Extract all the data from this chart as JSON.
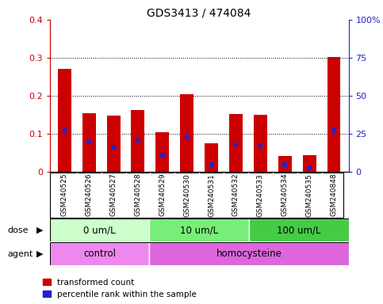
{
  "title": "GDS3413 / 474084",
  "samples": [
    "GSM240525",
    "GSM240526",
    "GSM240527",
    "GSM240528",
    "GSM240529",
    "GSM240530",
    "GSM240531",
    "GSM240532",
    "GSM240533",
    "GSM240534",
    "GSM240535",
    "GSM240848"
  ],
  "transformed_count": [
    0.27,
    0.155,
    0.148,
    0.163,
    0.105,
    0.205,
    0.075,
    0.152,
    0.15,
    0.042,
    0.043,
    0.302
  ],
  "percentile_rank_left": [
    0.108,
    0.078,
    0.065,
    0.082,
    0.043,
    0.092,
    0.018,
    0.072,
    0.068,
    0.018,
    0.01,
    0.108
  ],
  "percentile_height": [
    0.012,
    0.012,
    0.012,
    0.012,
    0.012,
    0.012,
    0.012,
    0.012,
    0.012,
    0.012,
    0.012,
    0.012
  ],
  "red_color": "#cc0000",
  "blue_color": "#2222cc",
  "bar_width": 0.55,
  "blue_bar_width": 0.18,
  "ylim_left": [
    0,
    0.4
  ],
  "yticks_left": [
    0,
    0.1,
    0.2,
    0.3,
    0.4
  ],
  "ytick_labels_left": [
    "0",
    "0.1",
    "0.2",
    "0.3",
    "0.4"
  ],
  "ytick_labels_right": [
    "0",
    "25",
    "50",
    "75",
    "100%"
  ],
  "dose_groups": [
    {
      "label": "0 um/L",
      "start": 0,
      "end": 3,
      "color": "#ccffcc"
    },
    {
      "label": "10 um/L",
      "start": 4,
      "end": 7,
      "color": "#77ee77"
    },
    {
      "label": "100 um/L",
      "start": 8,
      "end": 11,
      "color": "#44cc44"
    }
  ],
  "agent_groups": [
    {
      "label": "control",
      "start": 0,
      "end": 3,
      "color": "#ee88ee"
    },
    {
      "label": "homocysteine",
      "start": 4,
      "end": 11,
      "color": "#dd66dd"
    }
  ],
  "dose_label": "dose",
  "agent_label": "agent",
  "legend_red": "transformed count",
  "legend_blue": "percentile rank within the sample",
  "bg_color": "#ffffff",
  "tick_area_color": "#cccccc",
  "spine_bottom_color": "#000000",
  "grid_dotted_vals": [
    0.1,
    0.2,
    0.3
  ]
}
